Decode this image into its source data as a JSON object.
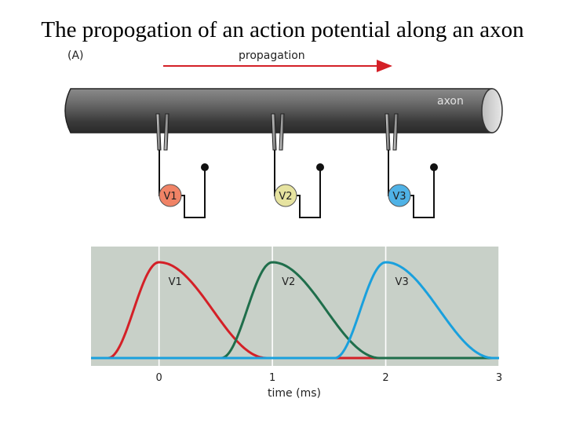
{
  "slide": {
    "title": "The propogation of an action potential along an axon"
  },
  "figure": {
    "panel_label": "(A)",
    "propagation_label": "propagation",
    "axon_label": "axon",
    "electrodes": [
      {
        "label": "V1",
        "color": "#f08366"
      },
      {
        "label": "V2",
        "color": "#e6e3a0"
      },
      {
        "label": "V3",
        "color": "#4fb2e6"
      }
    ]
  },
  "chart_data": {
    "type": "line",
    "xlabel": "time (ms)",
    "x_ticks": [
      "0",
      "1",
      "2",
      "3"
    ],
    "xlim": [
      -0.6,
      3
    ],
    "series": [
      {
        "name": "V1",
        "color": "#d42027",
        "peak_time": 0
      },
      {
        "name": "V2",
        "color": "#1f6e4b",
        "peak_time": 1
      },
      {
        "name": "V3",
        "color": "#1aa0dd",
        "peak_time": 2
      }
    ],
    "grid": true
  }
}
